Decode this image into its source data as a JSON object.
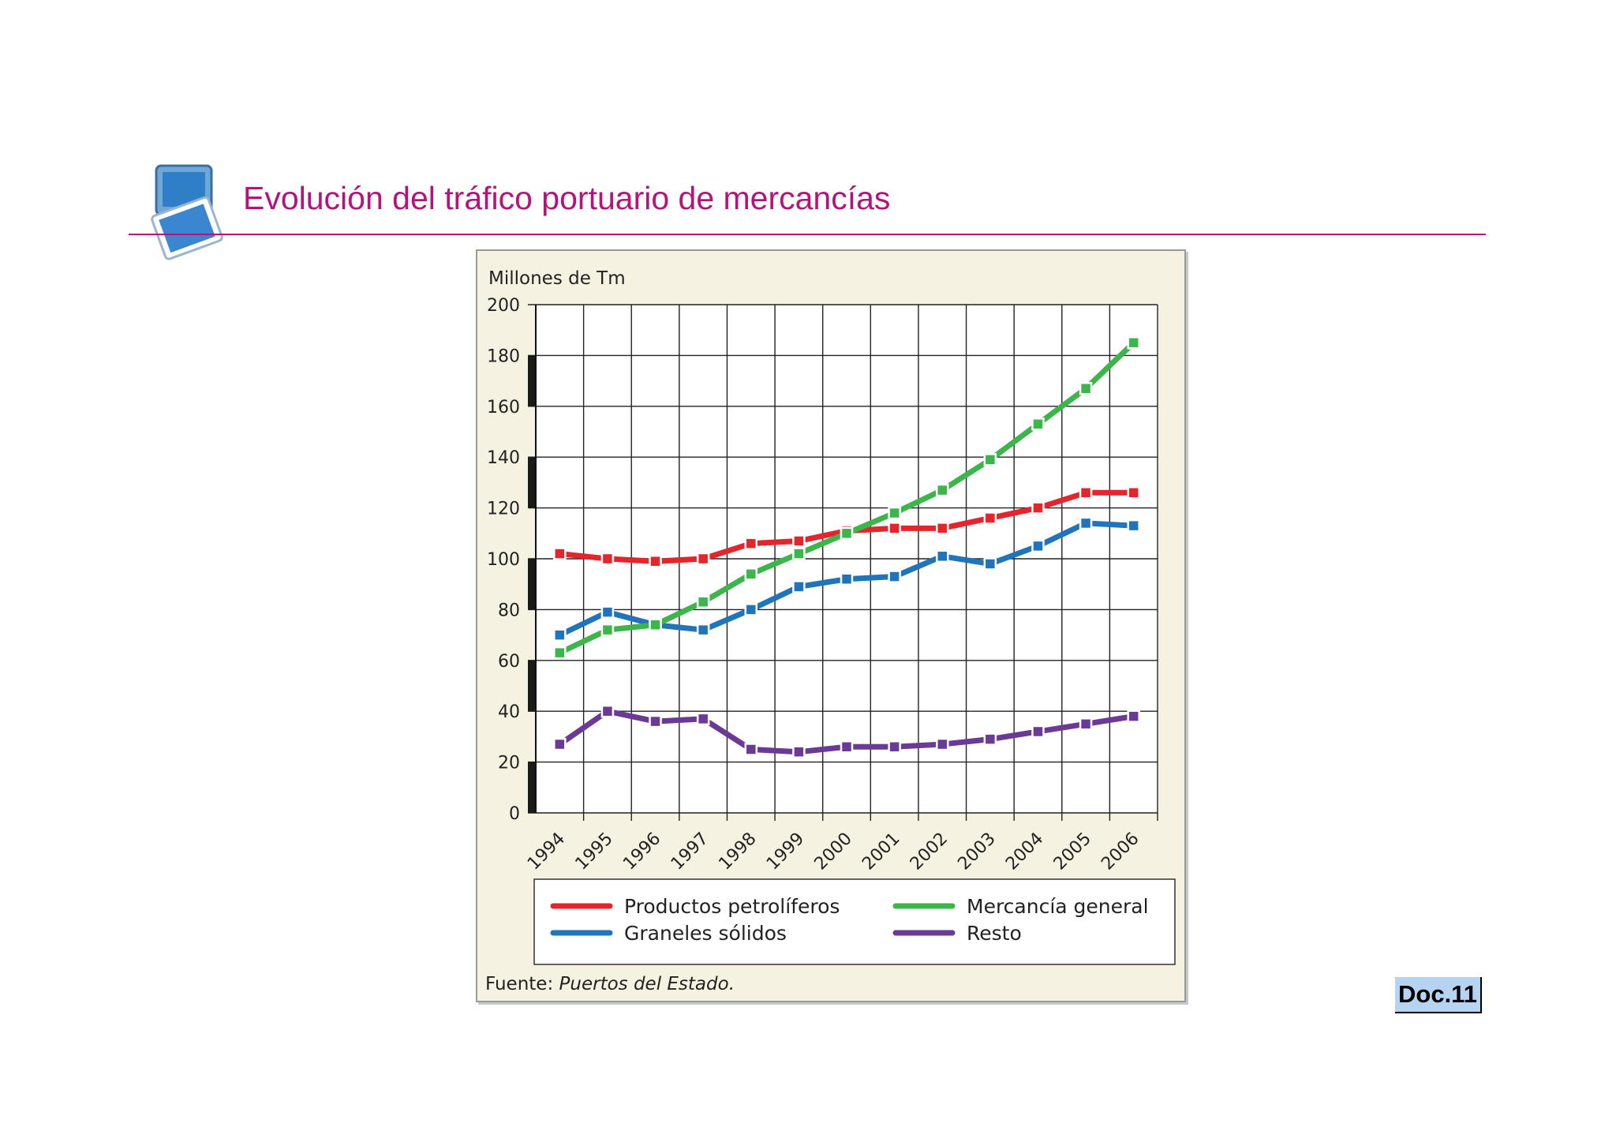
{
  "header": {
    "title": "Evolución del tráfico portuario de mercancías",
    "icon": "monitor-icon",
    "accent_color": "#b5127c"
  },
  "doc_label": "Doc.11",
  "chart_data": {
    "type": "line",
    "ylabel": "Millones de Tm",
    "ylim": [
      0,
      200
    ],
    "y_ticks": [
      0,
      20,
      40,
      60,
      80,
      100,
      120,
      140,
      160,
      180,
      200
    ],
    "categories": [
      "1994",
      "1995",
      "1996",
      "1997",
      "1998",
      "1999",
      "2000",
      "2001",
      "2002",
      "2003",
      "2004",
      "2005",
      "2006"
    ],
    "grid": true,
    "legend_position": "bottom",
    "series": [
      {
        "name": "Productos petrolíferos",
        "color": "#e4262c",
        "values": [
          102,
          100,
          99,
          100,
          106,
          107,
          111,
          112,
          112,
          116,
          120,
          126,
          126
        ]
      },
      {
        "name": "Mercancía general",
        "color": "#3cb54a",
        "values": [
          63,
          72,
          74,
          83,
          94,
          102,
          110,
          118,
          127,
          139,
          153,
          167,
          185
        ]
      },
      {
        "name": "Graneles sólidos",
        "color": "#1f74bb",
        "values": [
          70,
          79,
          74,
          72,
          80,
          89,
          92,
          93,
          101,
          98,
          105,
          114,
          113
        ]
      },
      {
        "name": "Resto",
        "color": "#6b3a96",
        "values": [
          27,
          40,
          36,
          37,
          25,
          24,
          26,
          26,
          27,
          29,
          32,
          35,
          38
        ]
      }
    ],
    "source_label": "Fuente:",
    "source_value": "Puertos del Estado."
  }
}
